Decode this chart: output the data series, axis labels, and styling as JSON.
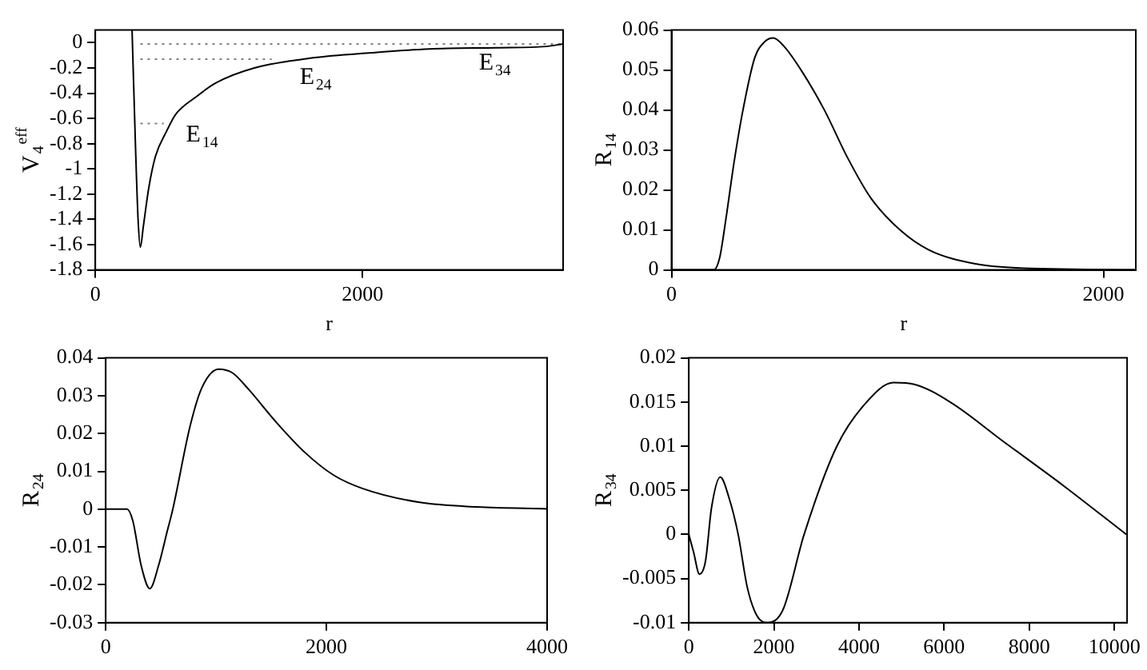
{
  "chart_data": [
    {
      "type": "line",
      "xlabel": "r",
      "ylabel": "V$_{4}$$^{eff}$",
      "xlim": [
        0,
        3500
      ],
      "ylim": [
        -1.8,
        0.1
      ],
      "xticks": [
        0,
        2000
      ],
      "yticks": [
        0,
        -0.2,
        -0.4,
        -0.6,
        -0.8,
        -1,
        -1.2,
        -1.4,
        -1.6,
        -1.8
      ],
      "series": [
        {
          "color": "#000000",
          "x": [
            275,
            300,
            320,
            337,
            360,
            400,
            450,
            534,
            600,
            753,
            900,
            1190,
            1628,
            2066,
            2500,
            3000,
            3370,
            3500
          ],
          "values": [
            0.1,
            -0.8,
            -1.4,
            -1.62,
            -1.45,
            -1.15,
            -0.9,
            -0.7,
            -0.57,
            -0.43,
            -0.32,
            -0.2,
            -0.12,
            -0.08,
            -0.05,
            -0.04,
            -0.03,
            -0.01
          ]
        },
        {
          "color": "#808080",
          "line_style": "dotted",
          "x": [
            337,
            512
          ],
          "values": [
            -0.64,
            -0.64
          ]
        },
        {
          "color": "#808080",
          "line_style": "dotted",
          "x": [
            337,
            1320
          ],
          "values": [
            -0.13,
            -0.13
          ]
        },
        {
          "color": "#808080",
          "line_style": "dotted",
          "x": [
            337,
            3500
          ],
          "values": [
            -0.01,
            -0.01
          ]
        }
      ],
      "annotations": [
        "E$_{14}$",
        "E$_{24}$",
        "E$_{34}$"
      ]
    },
    {
      "type": "line",
      "xlabel": "r",
      "ylabel": "R$_{14}$",
      "xlim": [
        0,
        2150
      ],
      "ylim": [
        0,
        0.06
      ],
      "xticks": [
        0,
        2000
      ],
      "yticks": [
        0,
        0.01,
        0.02,
        0.03,
        0.04,
        0.05,
        0.06
      ],
      "series": [
        {
          "color": "#000000",
          "x": [
            0,
            196,
            223,
            250,
            290,
            331,
            385,
            430,
            471,
            520,
            600,
            708,
            816,
            923,
            1058,
            1192,
            1408,
            1596,
            2150
          ],
          "values": [
            0,
            0,
            0.003,
            0.012,
            0.027,
            0.04,
            0.053,
            0.057,
            0.058,
            0.056,
            0.05,
            0.04,
            0.028,
            0.018,
            0.01,
            0.005,
            0.0015,
            0.0005,
            0
          ]
        }
      ]
    },
    {
      "type": "line",
      "ylabel": "R$_{24}$",
      "xlim": [
        0,
        4000
      ],
      "ylim": [
        -0.03,
        0.04
      ],
      "xticks": [
        0,
        2000,
        4000
      ],
      "yticks": [
        0.04,
        0.03,
        0.02,
        0.01,
        0,
        -0.01,
        -0.02,
        -0.03
      ],
      "series": [
        {
          "color": "#000000",
          "x": [
            0,
            192,
            245,
            322,
            400,
            478,
            556,
            608,
            765,
            870,
            1025,
            1150,
            1285,
            1545,
            1805,
            2065,
            2325,
            2845,
            3365,
            4000
          ],
          "values": [
            0,
            0,
            -0.003,
            -0.015,
            -0.021,
            -0.015,
            -0.006,
            0,
            0.022,
            0.032,
            0.037,
            0.036,
            0.032,
            0.023,
            0.015,
            0.009,
            0.0055,
            0.0018,
            0.0006,
            0.0001
          ]
        }
      ]
    },
    {
      "type": "line",
      "ylabel": "R$_{34}$",
      "xlim": [
        0,
        10300
      ],
      "ylim": [
        -0.01,
        0.02
      ],
      "xticks": [
        0,
        2000,
        4000,
        6000,
        8000,
        10000
      ],
      "yticks": [
        0.02,
        0.015,
        0.01,
        0.005,
        0,
        -0.005,
        -0.01
      ],
      "series": [
        {
          "color": "#000000",
          "x": [
            0,
            112,
            250,
            393,
            533,
            740,
            954,
            1160,
            1374,
            1600,
            1850,
            2216,
            2710,
            3480,
            4180,
            4810,
            5300,
            6140,
            7400,
            8810,
            10280
          ],
          "values": [
            0,
            -0.002,
            -0.0045,
            -0.003,
            0.003,
            0.0065,
            0.004,
            0,
            -0.006,
            -0.0092,
            -0.01,
            -0.0085,
            0,
            0.01,
            0.015,
            0.0172,
            0.017,
            0.015,
            0.0105,
            0.0055,
            0
          ]
        }
      ]
    }
  ]
}
